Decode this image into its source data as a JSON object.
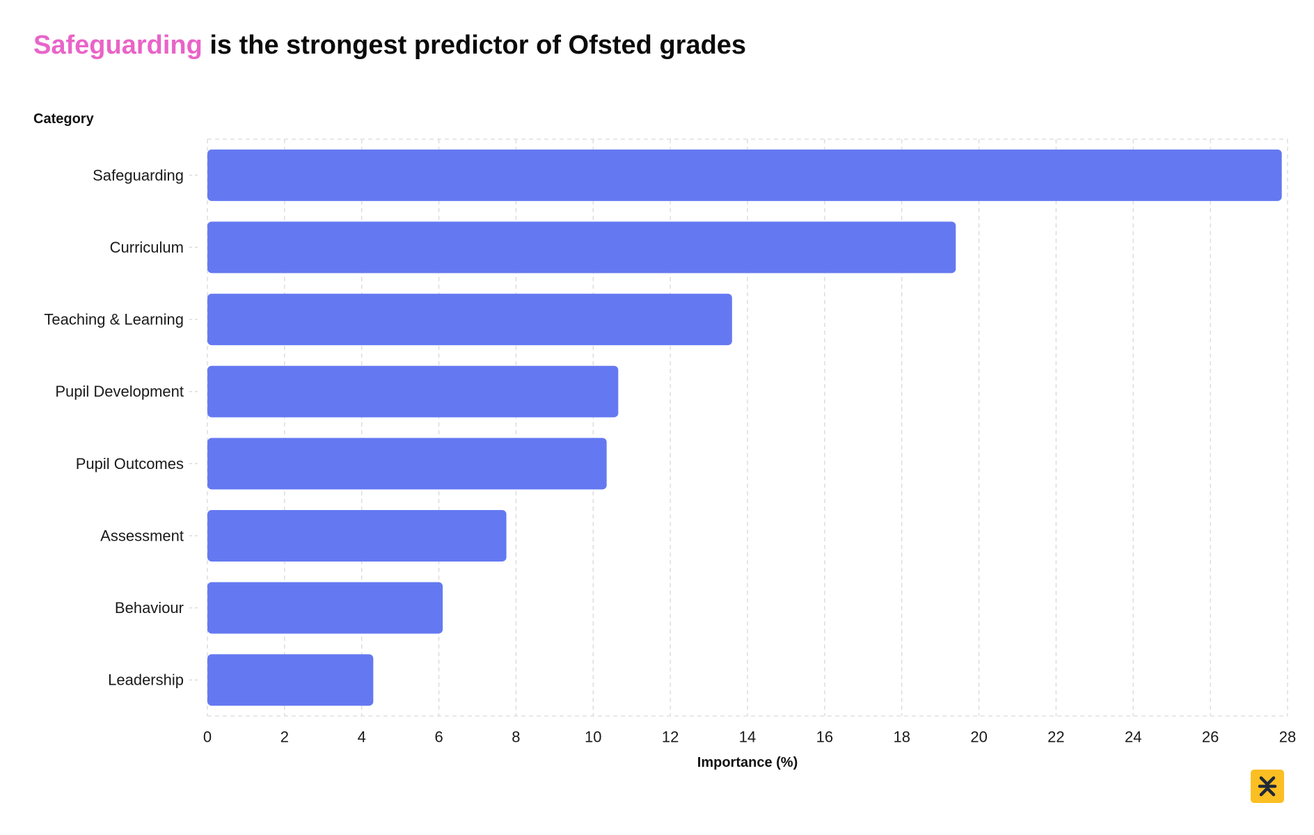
{
  "title": {
    "highlight": "Safeguarding",
    "rest": " is the strongest predictor of Ofsted grades"
  },
  "colors": {
    "bar": "#6479f1",
    "highlight": "#e964c8",
    "grid": "#d9d9d9",
    "logo_bg": "#fbbf24"
  },
  "logo_icon": "brand-mark-icon",
  "chart_data": {
    "type": "bar",
    "orientation": "horizontal",
    "title": "Safeguarding is the strongest predictor of Ofsted grades",
    "ylabel": "Category",
    "xlabel": "Importance (%)",
    "categories": [
      "Safeguarding",
      "Curriculum",
      "Teaching & Learning",
      "Pupil Development",
      "Pupil Outcomes",
      "Assessment",
      "Behaviour",
      "Leadership"
    ],
    "values": [
      27.85,
      19.4,
      13.6,
      10.65,
      10.35,
      7.75,
      6.1,
      4.3
    ],
    "xlim": [
      0,
      28
    ],
    "xticks": [
      0,
      2,
      4,
      6,
      8,
      10,
      12,
      14,
      16,
      18,
      20,
      22,
      24,
      26,
      28
    ],
    "grid": true
  }
}
